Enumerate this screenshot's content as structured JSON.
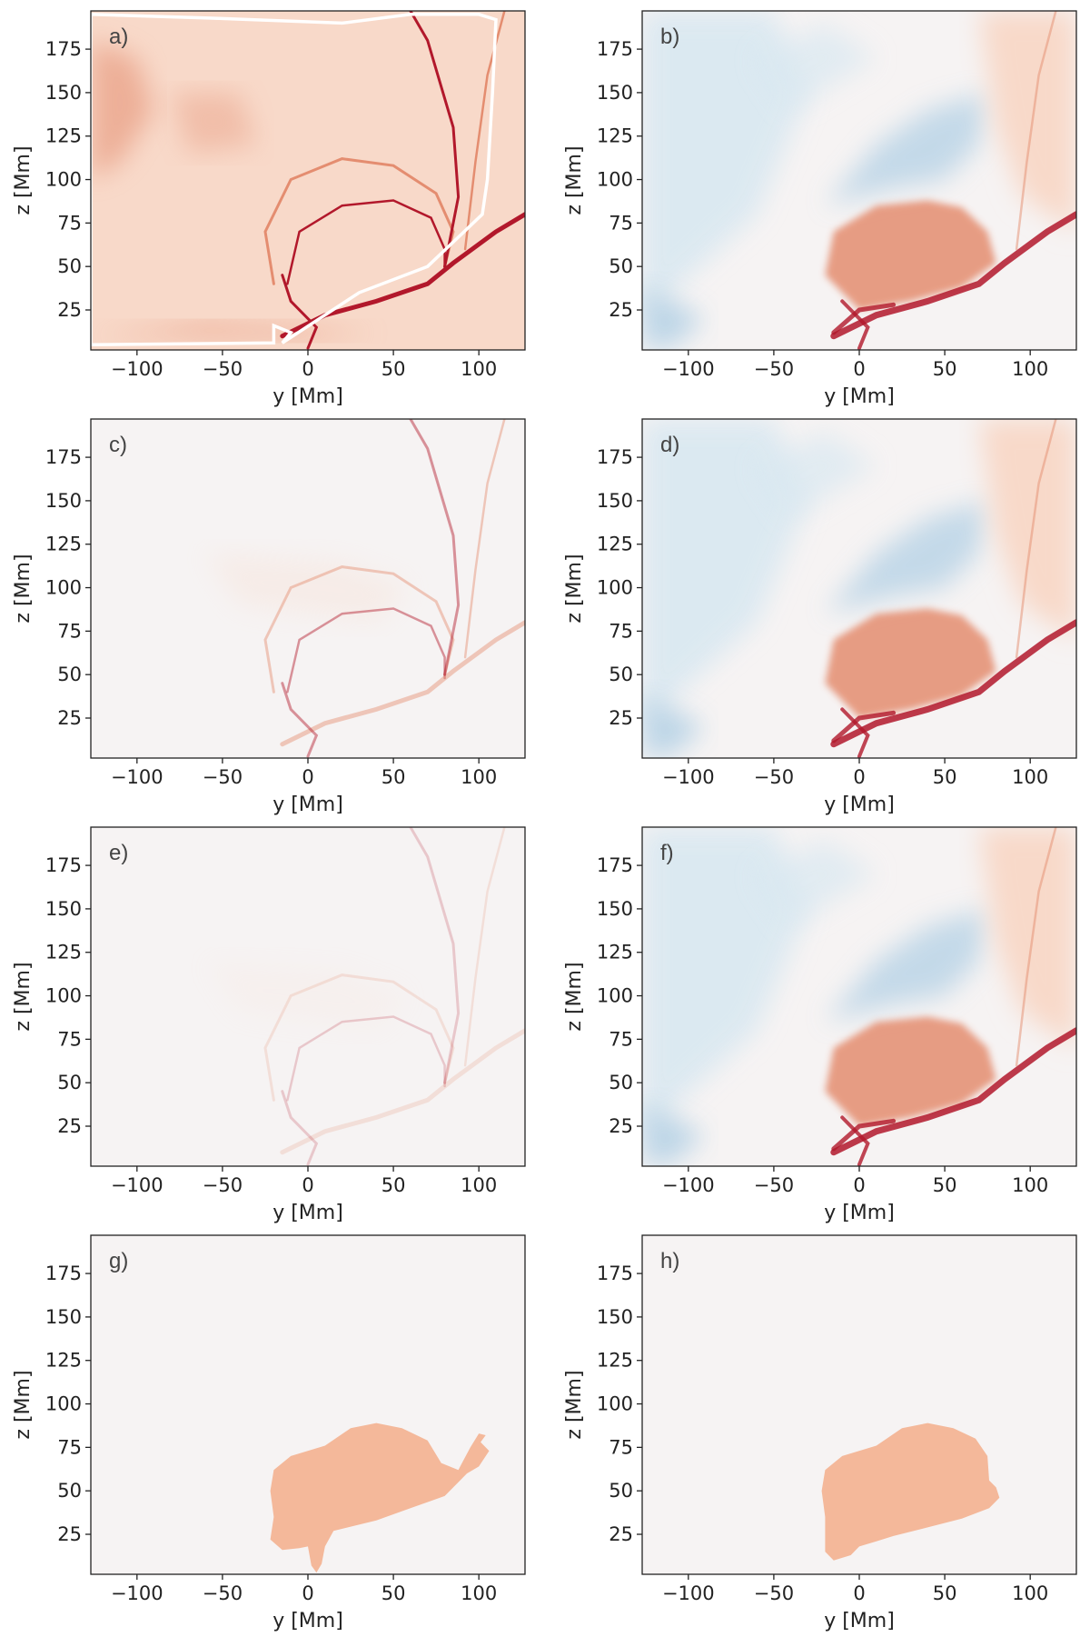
{
  "figure": {
    "xlabel": "y [Mm]",
    "ylabel": "z [Mm]",
    "colors": {
      "background": "#ffffff",
      "neutral": "#f6f3f3",
      "light_red": "#f8d9c9",
      "red": "#e48d70",
      "dark_red": "#b2182b",
      "light_blue": "#d9e8f1",
      "blue": "#b7d3e6",
      "mask": "#f4b89a",
      "contour": "#ffffff"
    }
  },
  "chart_data": [
    {
      "panel": "a)",
      "type": "heatmap",
      "xlabel": "y [Mm]",
      "ylabel": "z [Mm]",
      "xlim": [
        -127,
        127
      ],
      "ylim": [
        2,
        197
      ],
      "xticks": [
        -100,
        -50,
        0,
        50,
        100
      ],
      "yticks": [
        25,
        50,
        75,
        100,
        125,
        150,
        175
      ],
      "colormap": "RdBu_r",
      "grid": false,
      "style": "all-red",
      "has_white_contour": true
    },
    {
      "panel": "b)",
      "type": "heatmap",
      "xlabel": "y [Mm]",
      "ylabel": "z [Mm]",
      "xlim": [
        -127,
        127
      ],
      "ylim": [
        2,
        197
      ],
      "xticks": [
        -100,
        -50,
        0,
        50,
        100
      ],
      "yticks": [
        25,
        50,
        75,
        100,
        125,
        150,
        175
      ],
      "colormap": "RdBu_r",
      "grid": false,
      "style": "diverging"
    },
    {
      "panel": "c)",
      "type": "heatmap",
      "xlabel": "y [Mm]",
      "ylabel": "z [Mm]",
      "xlim": [
        -127,
        127
      ],
      "ylim": [
        2,
        197
      ],
      "xticks": [
        -100,
        -50,
        0,
        50,
        100
      ],
      "yticks": [
        25,
        50,
        75,
        100,
        125,
        150,
        175
      ],
      "colormap": "RdBu_r",
      "grid": false,
      "style": "faint-red"
    },
    {
      "panel": "d)",
      "type": "heatmap",
      "xlabel": "y [Mm]",
      "ylabel": "z [Mm]",
      "xlim": [
        -127,
        127
      ],
      "ylim": [
        2,
        197
      ],
      "xticks": [
        -100,
        -50,
        0,
        50,
        100
      ],
      "yticks": [
        25,
        50,
        75,
        100,
        125,
        150,
        175
      ],
      "colormap": "RdBu_r",
      "grid": false,
      "style": "diverging"
    },
    {
      "panel": "e)",
      "type": "heatmap",
      "xlabel": "y [Mm]",
      "ylabel": "z [Mm]",
      "xlim": [
        -127,
        127
      ],
      "ylim": [
        2,
        197
      ],
      "xticks": [
        -100,
        -50,
        0,
        50,
        100
      ],
      "yticks": [
        25,
        50,
        75,
        100,
        125,
        150,
        175
      ],
      "colormap": "RdBu_r",
      "grid": false,
      "style": "very-faint-red"
    },
    {
      "panel": "f)",
      "type": "heatmap",
      "xlabel": "y [Mm]",
      "ylabel": "z [Mm]",
      "xlim": [
        -127,
        127
      ],
      "ylim": [
        2,
        197
      ],
      "xticks": [
        -100,
        -50,
        0,
        50,
        100
      ],
      "yticks": [
        25,
        50,
        75,
        100,
        125,
        150,
        175
      ],
      "colormap": "RdBu_r",
      "grid": false,
      "style": "diverging"
    },
    {
      "panel": "g)",
      "type": "heatmap",
      "xlabel": "y [Mm]",
      "ylabel": "z [Mm]",
      "xlim": [
        -127,
        127
      ],
      "ylim": [
        2,
        197
      ],
      "xticks": [
        -100,
        -50,
        0,
        50,
        100
      ],
      "yticks": [
        25,
        50,
        75,
        100,
        125,
        150,
        175
      ],
      "colormap": "RdBu_r",
      "grid": false,
      "style": "mask",
      "mask_outline": [
        [
          -20,
          62
        ],
        [
          -10,
          70
        ],
        [
          10,
          76
        ],
        [
          25,
          86
        ],
        [
          40,
          89
        ],
        [
          55,
          86
        ],
        [
          70,
          79
        ],
        [
          78,
          66
        ],
        [
          88,
          62
        ],
        [
          95,
          75
        ],
        [
          100,
          83
        ],
        [
          104,
          82
        ],
        [
          101,
          78
        ],
        [
          106,
          73
        ],
        [
          100,
          64
        ],
        [
          93,
          60
        ],
        [
          85,
          52
        ],
        [
          80,
          47
        ],
        [
          60,
          40
        ],
        [
          40,
          33
        ],
        [
          15,
          27
        ],
        [
          10,
          18
        ],
        [
          8,
          8
        ],
        [
          5,
          3
        ],
        [
          2,
          7
        ],
        [
          0,
          18
        ],
        [
          -5,
          17
        ],
        [
          -15,
          16
        ],
        [
          -22,
          22
        ],
        [
          -20,
          35
        ],
        [
          -22,
          50
        ]
      ]
    },
    {
      "panel": "h)",
      "type": "heatmap",
      "xlabel": "y [Mm]",
      "ylabel": "z [Mm]",
      "xlim": [
        -127,
        127
      ],
      "ylim": [
        2,
        197
      ],
      "xticks": [
        -100,
        -50,
        0,
        50,
        100
      ],
      "yticks": [
        25,
        50,
        75,
        100,
        125,
        150,
        175
      ],
      "colormap": "RdBu_r",
      "grid": false,
      "style": "mask",
      "mask_outline": [
        [
          -20,
          62
        ],
        [
          -10,
          70
        ],
        [
          10,
          76
        ],
        [
          25,
          86
        ],
        [
          40,
          89
        ],
        [
          55,
          86
        ],
        [
          68,
          80
        ],
        [
          75,
          70
        ],
        [
          76,
          56
        ],
        [
          80,
          52
        ],
        [
          82,
          46
        ],
        [
          76,
          40
        ],
        [
          60,
          34
        ],
        [
          40,
          29
        ],
        [
          20,
          24
        ],
        [
          10,
          21
        ],
        [
          0,
          18
        ],
        [
          -5,
          13
        ],
        [
          -15,
          10
        ],
        [
          -20,
          15
        ],
        [
          -20,
          35
        ],
        [
          -22,
          50
        ]
      ]
    }
  ]
}
